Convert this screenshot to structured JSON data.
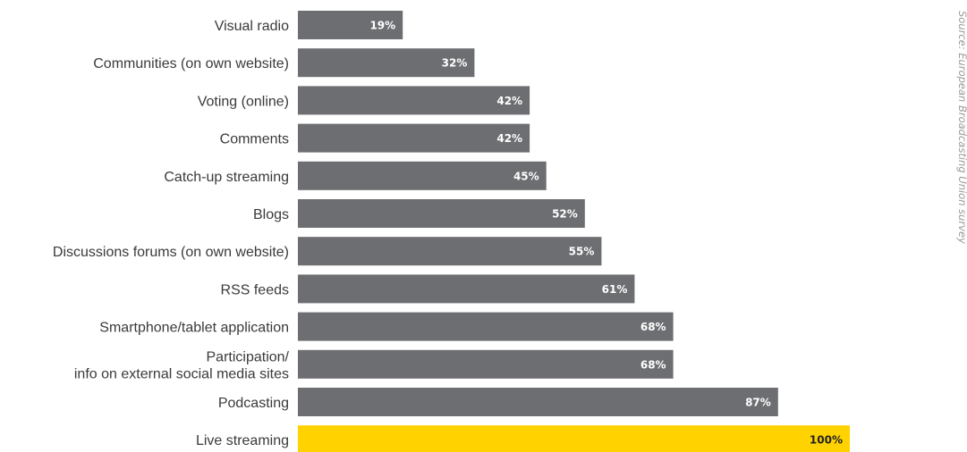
{
  "chart_data": {
    "type": "bar",
    "orientation": "horizontal",
    "categories": [
      "Visual radio",
      "Communities (on own website)",
      "Voting (online)",
      "Comments",
      "Catch-up streaming",
      "Blogs",
      "Discussions forums (on own website)",
      "RSS feeds",
      "Smartphone/tablet application",
      "Participation/\ninfo on external social media sites",
      "Podcasting",
      "Live streaming"
    ],
    "values": [
      19,
      32,
      42,
      42,
      45,
      52,
      55,
      61,
      68,
      68,
      87,
      100
    ],
    "value_labels": [
      "19%",
      "32%",
      "42%",
      "42%",
      "45%",
      "52%",
      "55%",
      "61%",
      "68%",
      "68%",
      "87%",
      "100%"
    ],
    "highlight_index": 11,
    "xlim": [
      0,
      100
    ],
    "grid": false,
    "legend": "none",
    "source_note": "Source: European Broadcasting Union survey"
  },
  "colors": {
    "bar": "#6d6e71",
    "highlight": "#ffd200",
    "value_text": "#ffffff",
    "highlight_value_text": "#222222",
    "category_text": "#3a3a3a",
    "source_text": "#9a9a9a"
  }
}
